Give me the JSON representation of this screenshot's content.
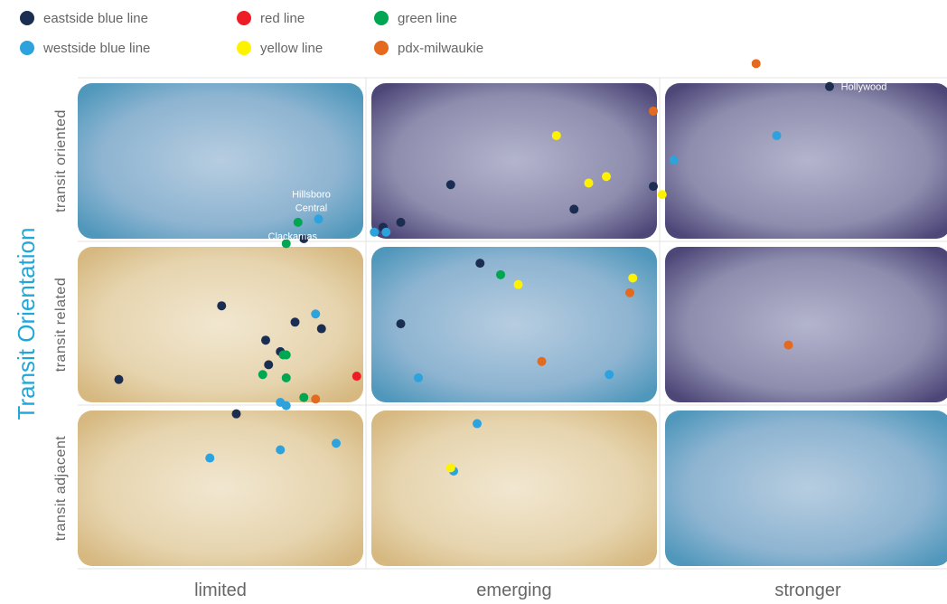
{
  "chart_data": {
    "type": "scatter",
    "ylabel": "Transit Orientation",
    "x_categories": [
      "limited",
      "emerging",
      "stronger"
    ],
    "y_categories": [
      "transit adjacent",
      "transit related",
      "transit oriented"
    ],
    "xlim": [
      0,
      3
    ],
    "ylim": [
      0,
      3
    ],
    "grid": true,
    "legend_position": "top-left",
    "cell_colors": [
      [
        "#d9c08a",
        "#d9c08a",
        "#5a9ec0"
      ],
      [
        "#d9c08a",
        "#5a9ec0",
        "#56507e"
      ],
      [
        "#5a9ec0",
        "#56507e",
        "#56507e"
      ]
    ],
    "series": [
      {
        "name": "eastside blue line",
        "color": "#1b2e52",
        "points": [
          {
            "x": 2.56,
            "y": 2.93,
            "label": "Hollywood"
          },
          {
            "x": 1.27,
            "y": 2.33
          },
          {
            "x": 1.69,
            "y": 2.18
          },
          {
            "x": 1.96,
            "y": 2.32
          },
          {
            "x": 0.77,
            "y": 2.0
          },
          {
            "x": 1.04,
            "y": 2.07
          },
          {
            "x": 1.1,
            "y": 2.1
          },
          {
            "x": 1.37,
            "y": 1.85
          },
          {
            "x": 0.49,
            "y": 1.59
          },
          {
            "x": 0.74,
            "y": 1.49
          },
          {
            "x": 0.83,
            "y": 1.45
          },
          {
            "x": 0.64,
            "y": 1.38
          },
          {
            "x": 0.69,
            "y": 1.31
          },
          {
            "x": 0.65,
            "y": 1.23
          },
          {
            "x": 1.1,
            "y": 1.48
          },
          {
            "x": 0.14,
            "y": 1.14
          },
          {
            "x": 0.54,
            "y": 0.93
          }
        ]
      },
      {
        "name": "westside blue line",
        "color": "#2da2dc",
        "points": [
          {
            "x": 2.38,
            "y": 2.63
          },
          {
            "x": 2.03,
            "y": 2.48
          },
          {
            "x": 0.82,
            "y": 2.12,
            "label": "Hillsboro Central"
          },
          {
            "x": 1.01,
            "y": 2.04
          },
          {
            "x": 1.05,
            "y": 2.04
          },
          {
            "x": 0.81,
            "y": 1.54
          },
          {
            "x": 1.16,
            "y": 1.15
          },
          {
            "x": 1.81,
            "y": 1.17
          },
          {
            "x": 0.69,
            "y": 1.0
          },
          {
            "x": 0.71,
            "y": 0.98
          },
          {
            "x": 1.36,
            "y": 0.87
          },
          {
            "x": 0.88,
            "y": 0.75
          },
          {
            "x": 0.69,
            "y": 0.71
          },
          {
            "x": 0.45,
            "y": 0.66
          },
          {
            "x": 1.28,
            "y": 0.58
          }
        ]
      },
      {
        "name": "red line",
        "color": "#ee1c25",
        "points": [
          {
            "x": 0.95,
            "y": 1.16
          }
        ]
      },
      {
        "name": "yellow line",
        "color": "#fff200",
        "points": [
          {
            "x": 1.63,
            "y": 2.63
          },
          {
            "x": 1.8,
            "y": 2.38
          },
          {
            "x": 1.74,
            "y": 2.34
          },
          {
            "x": 1.99,
            "y": 2.27
          },
          {
            "x": 1.89,
            "y": 1.76
          },
          {
            "x": 1.5,
            "y": 1.72
          },
          {
            "x": 1.27,
            "y": 0.6
          }
        ]
      },
      {
        "name": "green line",
        "color": "#00a651",
        "points": [
          {
            "x": 0.75,
            "y": 2.1,
            "label": "Clackamas"
          },
          {
            "x": 0.71,
            "y": 1.97
          },
          {
            "x": 1.44,
            "y": 1.78
          },
          {
            "x": 0.7,
            "y": 1.29
          },
          {
            "x": 0.71,
            "y": 1.29
          },
          {
            "x": 0.63,
            "y": 1.17
          },
          {
            "x": 0.71,
            "y": 1.15
          },
          {
            "x": 0.77,
            "y": 1.03
          }
        ]
      },
      {
        "name": "pdx-milwaukie",
        "color": "#e36a1e",
        "points": [
          {
            "x": 2.31,
            "y": 3.07
          },
          {
            "x": 1.96,
            "y": 2.78
          },
          {
            "x": 1.88,
            "y": 1.67
          },
          {
            "x": 3.0,
            "y": 1.58
          },
          {
            "x": 2.42,
            "y": 1.35
          },
          {
            "x": 1.58,
            "y": 1.25
          },
          {
            "x": 0.81,
            "y": 1.02
          }
        ]
      }
    ]
  }
}
